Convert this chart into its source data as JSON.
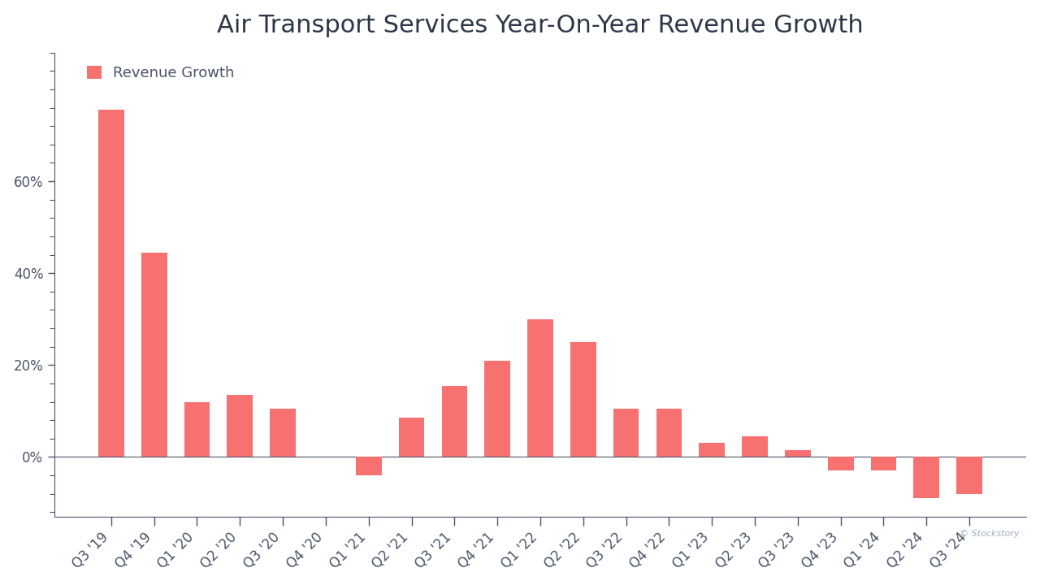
{
  "title": "Air Transport Services Year-On-Year Revenue Growth",
  "legend_label": "Revenue Growth",
  "bar_color": "#F87171",
  "background_color": "#FFFFFF",
  "categories": [
    "Q3 '19",
    "Q4 '19",
    "Q1 '20",
    "Q2 '20",
    "Q3 '20",
    "Q4 '20",
    "Q1 '21",
    "Q2 '21",
    "Q3 '21",
    "Q4 '21",
    "Q1 '22",
    "Q2 '22",
    "Q3 '22",
    "Q4 '22",
    "Q1 '23",
    "Q2 '23",
    "Q3 '23",
    "Q4 '23",
    "Q1 '24",
    "Q2 '24",
    "Q3 '24"
  ],
  "values": [
    0.755,
    0.445,
    0.12,
    0.135,
    0.105,
    0.0,
    -0.04,
    0.085,
    0.155,
    0.21,
    0.3,
    0.25,
    0.105,
    0.105,
    0.03,
    0.045,
    0.015,
    -0.03,
    -0.03,
    -0.09,
    -0.08
  ],
  "ylim": [
    -0.13,
    0.86
  ],
  "major_yticks": [
    0.0,
    0.2,
    0.4,
    0.6
  ],
  "minor_ytick_step": 0.04,
  "title_fontsize": 22,
  "legend_fontsize": 13,
  "tick_fontsize": 12,
  "watermark": "© Stockstory",
  "axis_color": "#4A5568",
  "title_color": "#2D3748"
}
